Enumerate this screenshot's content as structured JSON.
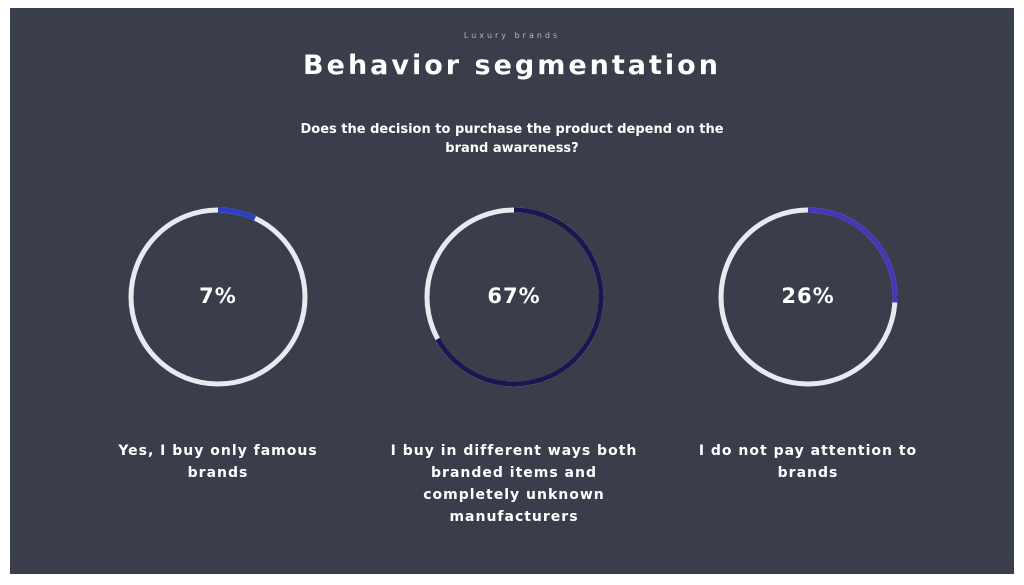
{
  "header": {
    "kicker": "Luxury brands",
    "title": "Behavior segmentation",
    "question": "Does the decision to purchase the product depend on the brand awareness?"
  },
  "chart_data": [
    {
      "type": "donut",
      "label": "Yes, I buy only famous brands",
      "values": [
        7
      ],
      "value_labels": [
        "7%"
      ],
      "color": "#2b3fc6",
      "track_color": "#e9e9f0"
    },
    {
      "type": "donut",
      "label": "I buy in different ways both branded items and completely unknown manufacturers",
      "values": [
        67
      ],
      "value_labels": [
        "67%"
      ],
      "color": "#1c1650",
      "track_color": "#e9e9f0"
    },
    {
      "type": "donut",
      "label": "I do not pay attention to brands",
      "values": [
        26
      ],
      "value_labels": [
        "26%"
      ],
      "color": "#4b34bc",
      "track_color": "#e9e9f0"
    }
  ]
}
